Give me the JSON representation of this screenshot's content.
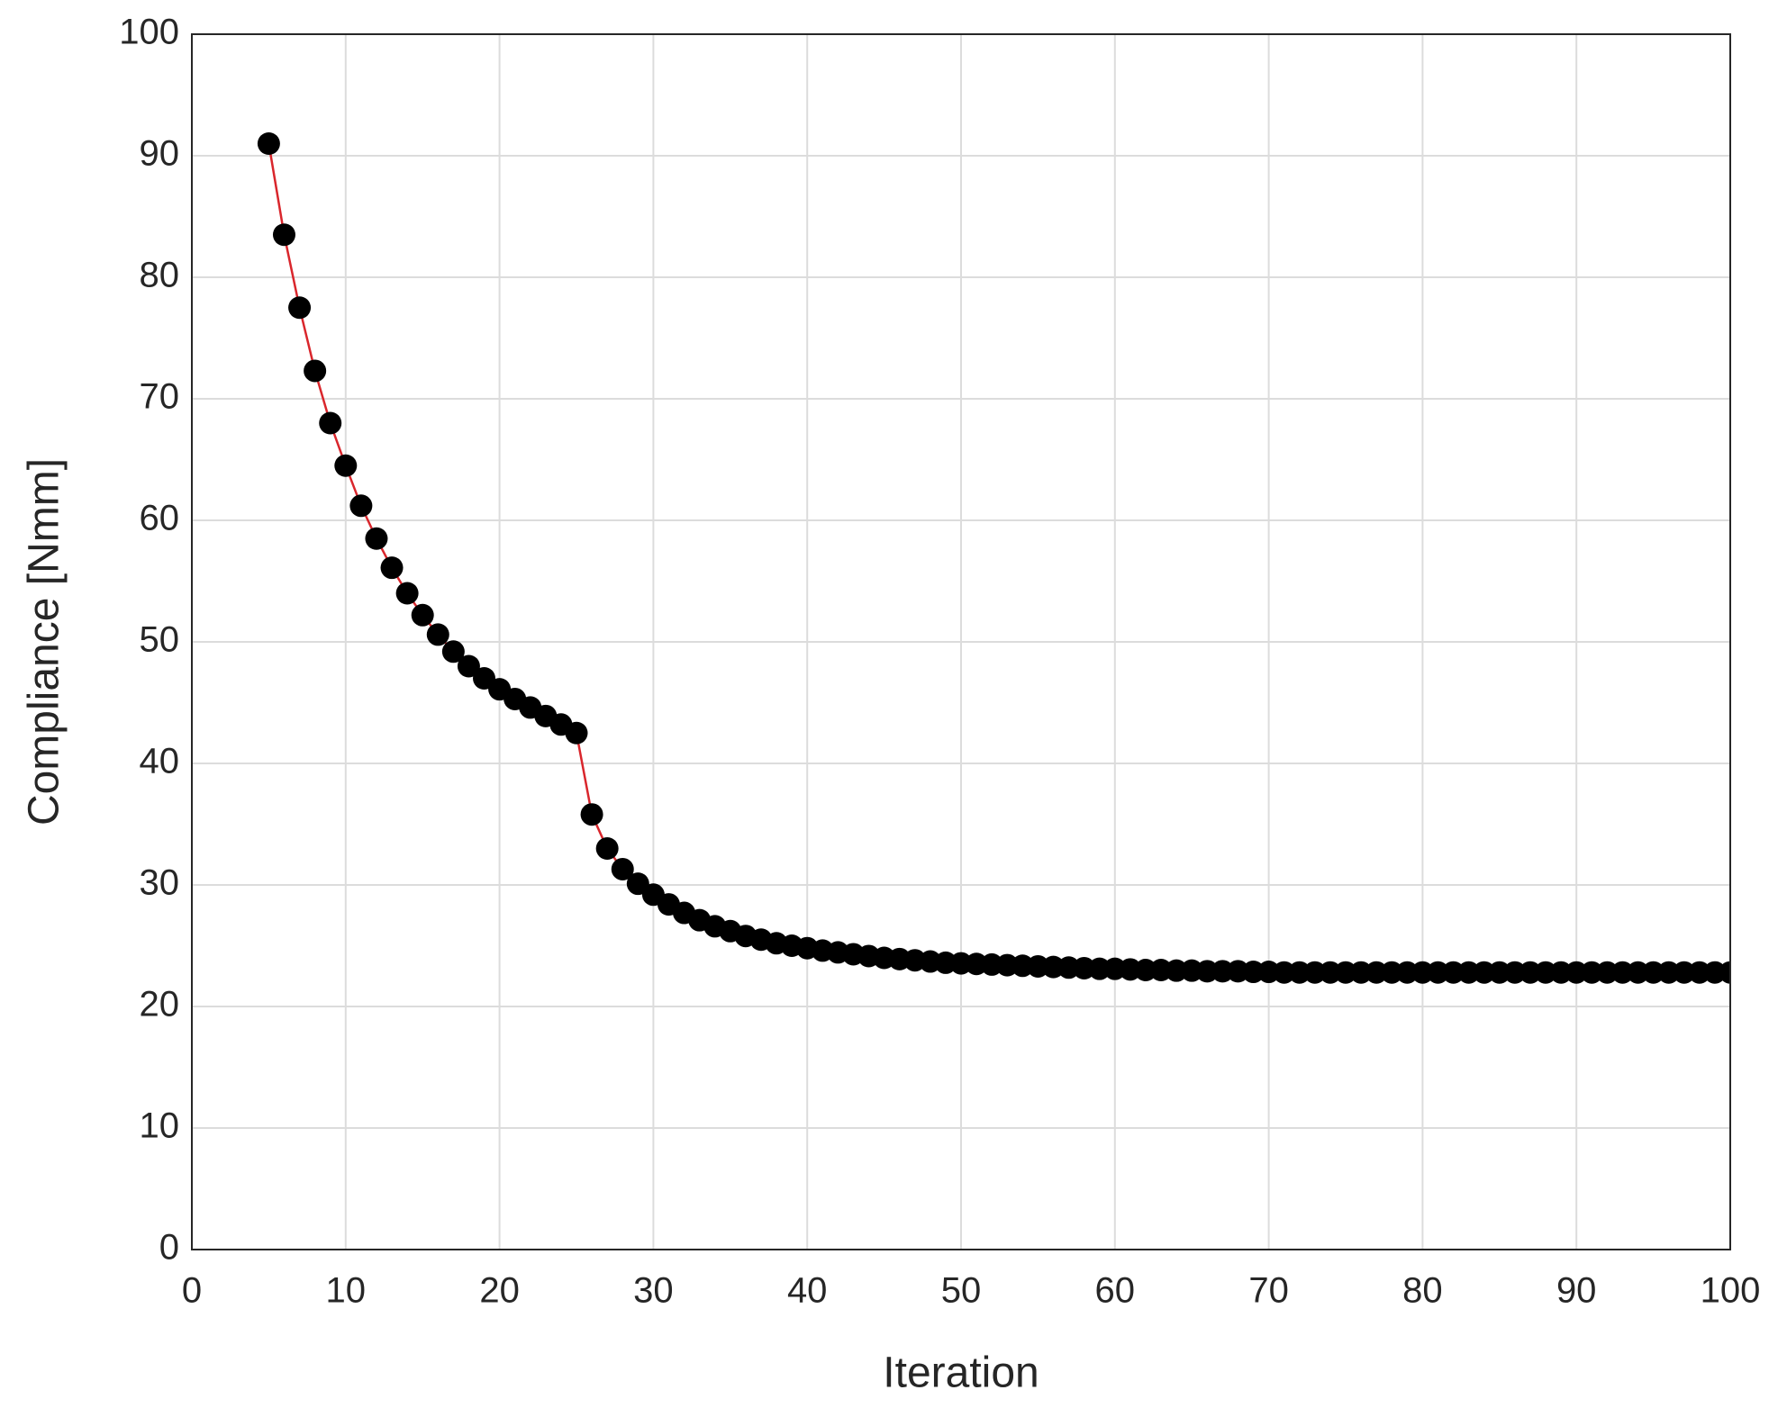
{
  "chart_data": {
    "type": "line",
    "xlabel": "Iteration",
    "ylabel": "Compliance [Nmm]",
    "x": [
      5,
      6,
      7,
      8,
      9,
      10,
      11,
      12,
      13,
      14,
      15,
      16,
      17,
      18,
      19,
      20,
      21,
      22,
      23,
      24,
      25,
      26,
      27,
      28,
      29,
      30,
      31,
      32,
      33,
      34,
      35,
      36,
      37,
      38,
      39,
      40,
      41,
      42,
      43,
      44,
      45,
      46,
      47,
      48,
      49,
      50,
      51,
      52,
      53,
      54,
      55,
      56,
      57,
      58,
      59,
      60,
      61,
      62,
      63,
      64,
      65,
      66,
      67,
      68,
      69,
      70,
      71,
      72,
      73,
      74,
      75,
      76,
      77,
      78,
      79,
      80,
      81,
      82,
      83,
      84,
      85,
      86,
      87,
      88,
      89,
      90,
      91,
      92,
      93,
      94,
      95,
      96,
      97,
      98,
      99,
      100
    ],
    "series": [
      {
        "line_color": "#d9262c",
        "marker_color": "#000000",
        "values": [
          91,
          83.5,
          77.5,
          72.3,
          68,
          64.5,
          61.2,
          58.5,
          56.1,
          54,
          52.2,
          50.6,
          49.2,
          48,
          47,
          46.1,
          45.3,
          44.6,
          43.9,
          43.2,
          42.5,
          35.8,
          33,
          31.3,
          30.1,
          29.2,
          28.4,
          27.7,
          27.1,
          26.6,
          26.2,
          25.8,
          25.5,
          25.2,
          25,
          24.8,
          24.6,
          24.45,
          24.3,
          24.15,
          24,
          23.9,
          23.8,
          23.7,
          23.6,
          23.55,
          23.5,
          23.45,
          23.4,
          23.35,
          23.3,
          23.25,
          23.2,
          23.15,
          23.1,
          23.1,
          23.05,
          23,
          23,
          22.95,
          22.95,
          22.9,
          22.9,
          22.9,
          22.85,
          22.85,
          22.8,
          22.8,
          22.8,
          22.8,
          22.8,
          22.8,
          22.8,
          22.8,
          22.8,
          22.8,
          22.8,
          22.8,
          22.8,
          22.8,
          22.8,
          22.8,
          22.8,
          22.8,
          22.8,
          22.8,
          22.8,
          22.8,
          22.8,
          22.8,
          22.8,
          22.8,
          22.8,
          22.8,
          22.8,
          22.8
        ]
      }
    ],
    "xlim": [
      0,
      100
    ],
    "xticks": [
      0,
      10,
      20,
      30,
      40,
      50,
      60,
      70,
      80,
      90,
      100
    ],
    "ylim": [
      0,
      100
    ],
    "yticks": [
      0,
      10,
      20,
      30,
      40,
      50,
      60,
      70,
      80,
      90,
      100
    ],
    "grid": true
  }
}
